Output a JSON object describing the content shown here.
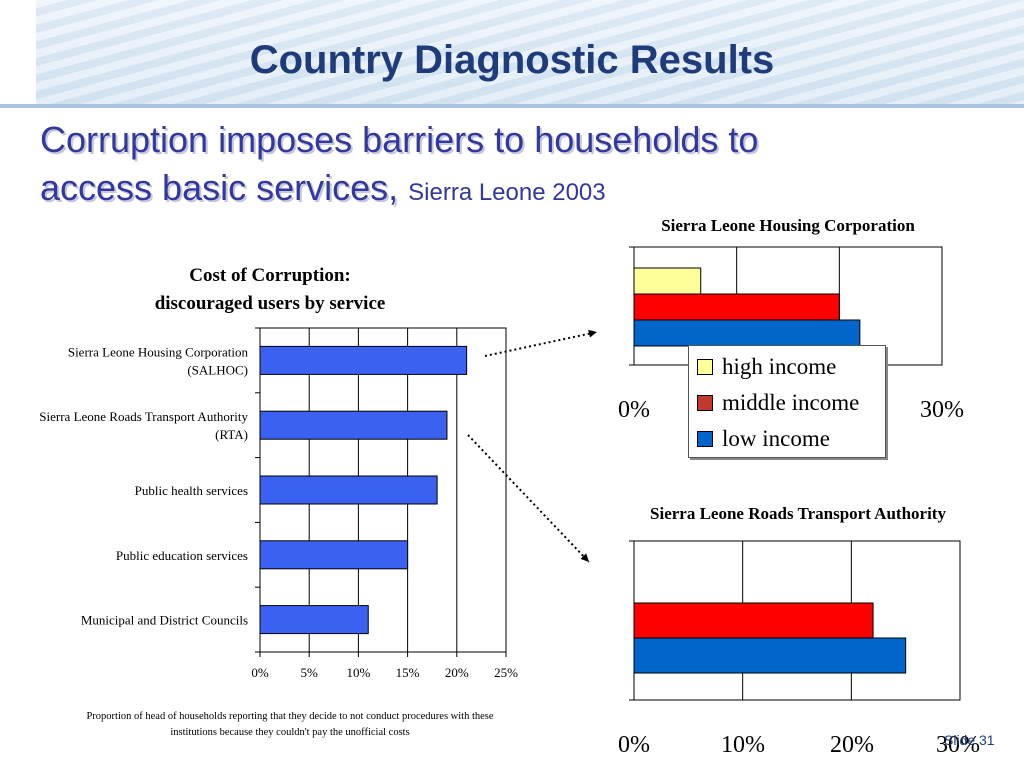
{
  "slide": {
    "title": "Country Diagnostic Results",
    "subtitle_main": "Corruption imposes barriers to households to access basic services,",
    "subtitle_line1": "Corruption imposes barriers to households to",
    "subtitle_line2": "access basic services,",
    "subtitle_small": "Sierra Leone 2003",
    "slide_number": "Slide 31",
    "footnote_line1": "Proportion of head of households reporting that they decide to not conduct procedures with these",
    "footnote_line2": "institutions because they couldn't pay the unofficial costs"
  },
  "colors": {
    "title": "#1f3c7a",
    "subtitle": "#33389c",
    "bar_main": "#3b61f0",
    "high_income": "#ffff99",
    "middle_income": "#ff0000",
    "low_income": "#0066cc"
  },
  "chart_data": [
    {
      "type": "bar",
      "orientation": "horizontal",
      "title_line1": "Cost of Corruption:",
      "title_line2": "discouraged users by service",
      "categories": [
        "Sierra Leone Housing Corporation (SALHOC)",
        "Sierra Leone Roads Transport Authority (RTA)",
        "Public health services",
        "Public education services",
        "Municipal and District Councils"
      ],
      "category_lines": [
        [
          "Sierra Leone Housing Corporation",
          "(SALHOC)"
        ],
        [
          "Sierra Leone Roads Transport Authority",
          "(RTA)"
        ],
        [
          "Public health services"
        ],
        [
          "Public education services"
        ],
        [
          "Municipal and District Councils"
        ]
      ],
      "values": [
        21,
        19,
        18,
        15,
        11
      ],
      "xlim": [
        0,
        25
      ],
      "xticks": [
        "0%",
        "5%",
        "10%",
        "15%",
        "20%",
        "25%"
      ],
      "grid": true
    },
    {
      "type": "bar",
      "orientation": "horizontal",
      "title": "Sierra Leone Housing Corporation",
      "series": [
        {
          "name": "high income",
          "values": [
            6.5
          ]
        },
        {
          "name": "middle income",
          "values": [
            20
          ]
        },
        {
          "name": "low income",
          "values": [
            22
          ]
        }
      ],
      "xlim": [
        0,
        30
      ],
      "xticks": [
        "0%",
        "30%"
      ],
      "legend": "center",
      "grid": true
    },
    {
      "type": "bar",
      "orientation": "horizontal",
      "title": "Sierra Leone Roads Transport Authority",
      "series": [
        {
          "name": "middle income",
          "values": [
            22
          ]
        },
        {
          "name": "low income",
          "values": [
            25
          ]
        }
      ],
      "xlim": [
        0,
        30
      ],
      "xticks": [
        "0%",
        "10%",
        "20%",
        "30%"
      ],
      "grid": true
    }
  ]
}
